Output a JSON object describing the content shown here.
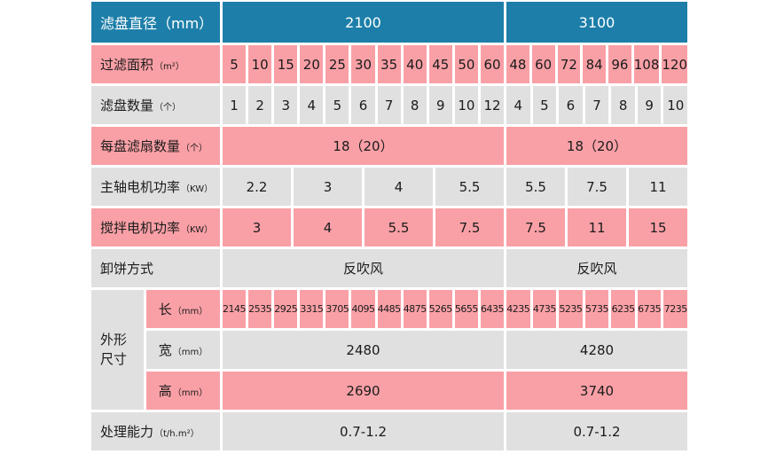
{
  "colors": {
    "header_bg": "#1d7fa9",
    "header_text": "#ffffff",
    "pink": "#f9a0a6",
    "gray": "#e0e0e0",
    "text": "#1b1b1b"
  },
  "header": {
    "label": "滤盘直径（mm）",
    "group1": "2100",
    "group2": "3100"
  },
  "rows": {
    "filter_area": {
      "label": "过滤面积",
      "unit": "（m²）",
      "left": [
        "5",
        "10",
        "15",
        "20",
        "25",
        "30",
        "35",
        "40",
        "45",
        "50",
        "60"
      ],
      "right": [
        "48",
        "60",
        "72",
        "84",
        "96",
        "108",
        "120"
      ]
    },
    "disc_count": {
      "label": "滤盘数量",
      "unit": "（个）",
      "left": [
        "1",
        "2",
        "3",
        "4",
        "5",
        "6",
        "7",
        "8",
        "9",
        "10",
        "12"
      ],
      "right": [
        "4",
        "5",
        "6",
        "7",
        "8",
        "9",
        "10"
      ]
    },
    "sectors_per_disc": {
      "label": "每盘滤扇数量",
      "unit": "（个）",
      "left_span": "18（20）",
      "right_span": "18（20）"
    },
    "main_motor_power": {
      "label": "主轴电机功率",
      "unit": "（KW）",
      "left": [
        "2.2",
        "3",
        "4",
        "5.5"
      ],
      "right": [
        "5.5",
        "7.5",
        "11"
      ]
    },
    "agitator_motor_power": {
      "label": "搅拌电机功率",
      "unit": "（KW）",
      "left": [
        "3",
        "4",
        "5.5",
        "7.5"
      ],
      "right": [
        "7.5",
        "11",
        "15"
      ]
    },
    "cake_discharge": {
      "label": "卸饼方式",
      "unit": "",
      "left_span": "反吹风",
      "right_span": "反吹风"
    },
    "capacity": {
      "label": "处理能力",
      "unit": "（t/h.m²）",
      "left_span": "0.7-1.2",
      "right_span": "0.7-1.2"
    }
  },
  "dimensions": {
    "label_line1": "外形",
    "label_line2": "尺寸",
    "length": {
      "label": "长",
      "unit": "（mm）",
      "left": [
        "2145",
        "2535",
        "2925",
        "3315",
        "3705",
        "4095",
        "4485",
        "4875",
        "5265",
        "5655",
        "6435"
      ],
      "right": [
        "4235",
        "4735",
        "5235",
        "5735",
        "6235",
        "6735",
        "7235"
      ]
    },
    "width": {
      "label": "宽",
      "unit": "（mm）",
      "left_span": "2480",
      "right_span": "4280"
    },
    "height": {
      "label": "高",
      "unit": "（mm）",
      "left_span": "2690",
      "right_span": "3740"
    }
  }
}
